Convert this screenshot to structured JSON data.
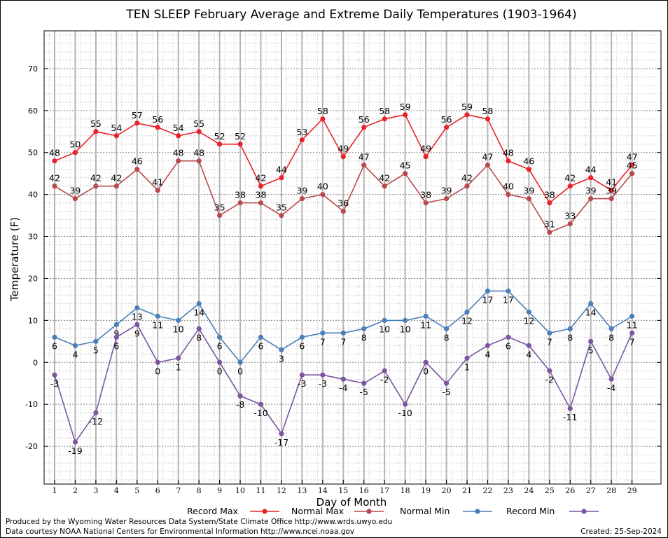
{
  "chart_data": {
    "type": "line",
    "title": "TEN SLEEP February Average and Extreme Daily Temperatures (1903-1964)",
    "xlabel": "Day of Month",
    "ylabel": "Temperature (F)",
    "ylim": [
      -29,
      79
    ],
    "yticks": [
      -20,
      -10,
      0,
      10,
      20,
      30,
      40,
      50,
      60,
      70
    ],
    "x": [
      1,
      2,
      3,
      4,
      5,
      6,
      7,
      8,
      9,
      10,
      11,
      12,
      13,
      14,
      15,
      16,
      17,
      18,
      19,
      20,
      21,
      22,
      23,
      24,
      25,
      26,
      27,
      28,
      29
    ],
    "grid": true,
    "legend_position": "bottom",
    "series": [
      {
        "name": "Record Max",
        "color": "#e8242a",
        "values": [
          48,
          50,
          55,
          54,
          57,
          56,
          54,
          55,
          52,
          52,
          42,
          44,
          53,
          58,
          49,
          56,
          58,
          59,
          49,
          56,
          59,
          58,
          48,
          46,
          38,
          42,
          44,
          41,
          47
        ]
      },
      {
        "name": "Normal Max",
        "color": "#b84a4d",
        "values": [
          42,
          39,
          42,
          42,
          46,
          41,
          48,
          48,
          35,
          38,
          38,
          35,
          39,
          40,
          36,
          47,
          42,
          45,
          38,
          39,
          42,
          47,
          40,
          39,
          31,
          33,
          39,
          39,
          45
        ]
      },
      {
        "name": "Normal Min",
        "color": "#4a7fb8",
        "values": [
          6,
          4,
          5,
          9,
          13,
          11,
          10,
          14,
          6,
          0,
          6,
          3,
          6,
          7,
          7,
          8,
          10,
          10,
          11,
          8,
          12,
          17,
          17,
          12,
          7,
          8,
          14,
          8,
          11
        ]
      },
      {
        "name": "Record Min",
        "color": "#7b55a0",
        "values": [
          -3,
          -19,
          -12,
          6,
          9,
          0,
          1,
          8,
          0,
          -8,
          -10,
          -17,
          -3,
          -3,
          -4,
          -5,
          -2,
          -10,
          0,
          -5,
          1,
          4,
          6,
          4,
          -2,
          -11,
          5,
          -4,
          7
        ]
      }
    ]
  },
  "footer": {
    "produced_by": "Produced by the Wyoming Water Resources Data System/State Climate Office http://www.wrds.uwyo.edu",
    "courtesy": "Data courtesy NOAA National Centers for Environmental Information http://www.ncei.noaa.gov",
    "created": "Created:  25-Sep-2024"
  }
}
